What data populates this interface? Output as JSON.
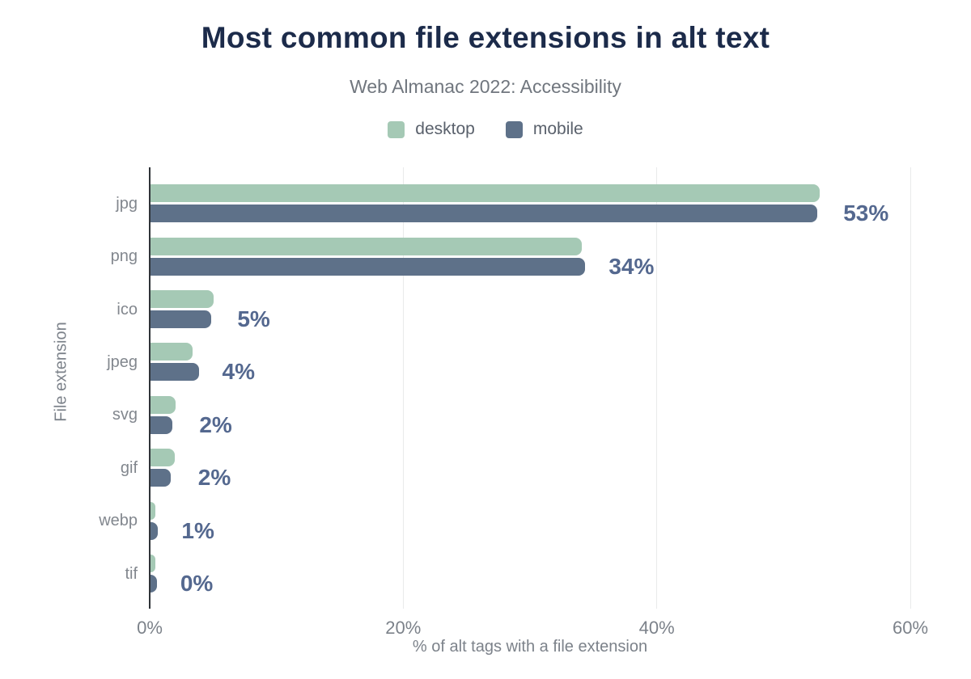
{
  "header": {
    "title": "Most common file extensions in alt text",
    "subtitle": "Web Almanac 2022: Accessibility"
  },
  "chart_data": {
    "type": "bar",
    "orientation": "horizontal",
    "title": "Most common file extensions in alt text",
    "subtitle": "Web Almanac 2022: Accessibility",
    "categories": [
      "jpg",
      "png",
      "ico",
      "jpeg",
      "svg",
      "gif",
      "webp",
      "tif"
    ],
    "series": [
      {
        "name": "desktop",
        "color": "#a5c9b5",
        "values": [
          52.8,
          34.0,
          5.0,
          3.3,
          2.0,
          1.9,
          0.4,
          0.4
        ]
      },
      {
        "name": "mobile",
        "color": "#5e7189",
        "values": [
          52.6,
          34.3,
          4.8,
          3.8,
          1.7,
          1.6,
          0.6,
          0.5
        ]
      }
    ],
    "value_labels": [
      "53%",
      "34%",
      "5%",
      "4%",
      "2%",
      "2%",
      "1%",
      "0%"
    ],
    "xlabel": "% of alt tags with a file extension",
    "ylabel": "File extension",
    "xlim": [
      0,
      60
    ],
    "xticks": [
      0,
      20,
      40,
      60
    ],
    "xtick_labels": [
      "0%",
      "20%",
      "40%",
      "60%"
    ],
    "grid": "vertical gridlines at 20%, 40%, 60%",
    "legend_position": "top-center"
  },
  "palette": {
    "title": "#1c2b4a",
    "subtitle": "#70767e",
    "legend_text": "#5a616c",
    "axis_text": "#7c828a",
    "category_text": "#82878e",
    "value_label": "#54688f",
    "gridline": "#e9eaeb",
    "axis_line": "#2f3338",
    "background": "#ffffff"
  }
}
